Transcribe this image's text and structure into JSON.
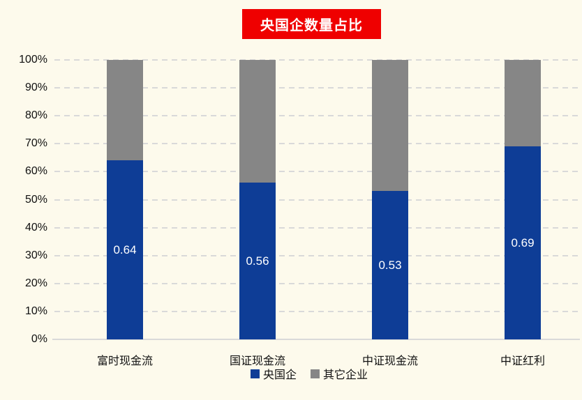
{
  "page": {
    "background_color": "#FDFAEC"
  },
  "chart_data": {
    "type": "bar",
    "subtype": "stacked-column",
    "title": "央国企数量占比",
    "title_bg_color": "#EF0000",
    "title_text_color": "#FFFFFF",
    "categories": [
      "富时现金流",
      "国证现金流",
      "中证现金流",
      "中证红利"
    ],
    "series": [
      {
        "name": "央国企",
        "color": "#0E3D96",
        "values": [
          0.64,
          0.56,
          0.53,
          0.69
        ],
        "data_labels": [
          "0.64",
          "0.56",
          "0.53",
          "0.69"
        ],
        "data_label_color": "#FFFFFF"
      },
      {
        "name": "其它企业",
        "color": "#868686",
        "values": [
          0.36,
          0.44,
          0.47,
          0.31
        ],
        "data_labels": [
          "",
          "",
          "",
          ""
        ],
        "data_label_color": "#FFFFFF"
      }
    ],
    "xlabel": "",
    "ylabel": "",
    "ylim": [
      0,
      1
    ],
    "y_ticks": [
      "0%",
      "10%",
      "20%",
      "30%",
      "40%",
      "50%",
      "60%",
      "70%",
      "80%",
      "90%",
      "100%"
    ],
    "grid": "horizontal dashed",
    "gridline_color": "#D9D9D9",
    "axis_line_color": "#D9D9D9",
    "legend_position": "bottom center"
  }
}
